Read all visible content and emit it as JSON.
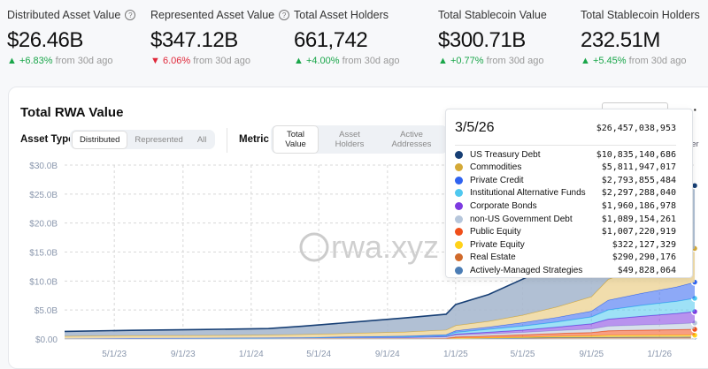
{
  "stats": [
    {
      "label": "Distributed Asset Value",
      "help": true,
      "value": "$26.46B",
      "change": "+6.83%",
      "direction": "up",
      "suffix": "from 30d ago"
    },
    {
      "label": "Represented Asset Value",
      "help": true,
      "value": "$347.12B",
      "change": "6.06%",
      "direction": "down",
      "suffix": "from 30d ago"
    },
    {
      "label": "Total Asset Holders",
      "help": false,
      "value": "661,742",
      "change": "+4.00%",
      "direction": "up",
      "suffix": "from 30d ago"
    },
    {
      "label": "Total Stablecoin Value",
      "help": false,
      "value": "$300.71B",
      "change": "+0.77%",
      "direction": "up",
      "suffix": "from 30d ago"
    },
    {
      "label": "Total Stablecoin Holders",
      "help": false,
      "value": "232.51M",
      "change": "+5.45%",
      "direction": "up",
      "suffix": "from 30d ago"
    }
  ],
  "card": {
    "title": "Total RWA Value",
    "asset_type_label": "Asset Type",
    "asset_types": [
      "Distributed",
      "Represented",
      "All"
    ],
    "asset_type_selected": "Distributed",
    "metric_label": "Metric",
    "metrics": [
      "Total Value",
      "Asset Holders",
      "Active Addresses"
    ],
    "metric_selected": "Total Value",
    "peek_text": "valer",
    "more_icon": "ellipsis-icon"
  },
  "tooltip": {
    "date": "3/5/26",
    "total": "$26,457,038,953",
    "rows": [
      {
        "name": "US Treasury Debt",
        "value": "$10,835,140,686",
        "color": "#173f75"
      },
      {
        "name": "Commodities",
        "value": "$5,811,947,017",
        "color": "#d4a937"
      },
      {
        "name": "Private Credit",
        "value": "$2,793,855,484",
        "color": "#2f63f0"
      },
      {
        "name": "Institutional Alternative Funds",
        "value": "$2,297,288,040",
        "color": "#4fc8ef"
      },
      {
        "name": "Corporate Bonds",
        "value": "$1,960,186,978",
        "color": "#7d3be0"
      },
      {
        "name": "non-US Government Debt",
        "value": "$1,089,154,261",
        "color": "#b6c6db"
      },
      {
        "name": "Public Equity",
        "value": "$1,007,220,919",
        "color": "#f04f1a"
      },
      {
        "name": "Private Equity",
        "value": "$322,127,329",
        "color": "#ffd21a"
      },
      {
        "name": "Real Estate",
        "value": "$290,290,176",
        "color": "#d06a2b"
      },
      {
        "name": "Actively-Managed Strategies",
        "value": "$49,828,064",
        "color": "#4b7db5"
      }
    ]
  },
  "watermark": "rwa.xyz",
  "chart_data": {
    "type": "area",
    "stacked": true,
    "ylim": [
      0,
      30
    ],
    "yticks": [
      "$0.00",
      "$5.0B",
      "$10.0B",
      "$15.0B",
      "$20.0B",
      "$25.0B",
      "$30.0B"
    ],
    "xticks": [
      "5/1/23",
      "9/1/23",
      "1/1/24",
      "5/1/24",
      "9/1/24",
      "1/1/25",
      "5/1/25",
      "9/1/25",
      "1/1/26"
    ],
    "grid": true,
    "x": [
      "2023-02-01",
      "2023-06-01",
      "2023-10-01",
      "2024-02-01",
      "2024-04-01",
      "2024-07-01",
      "2024-10-01",
      "2024-12-15",
      "2025-01-01",
      "2025-03-01",
      "2025-05-01",
      "2025-07-01",
      "2025-09-01",
      "2025-10-01",
      "2025-12-01",
      "2026-02-01",
      "2026-03-05"
    ],
    "series": [
      {
        "name": "Real Estate",
        "values": [
          0.03,
          0.05,
          0.05,
          0.05,
          0.05,
          0.05,
          0.05,
          0.05,
          0.08,
          0.1,
          0.15,
          0.2,
          0.22,
          0.25,
          0.27,
          0.28,
          0.29
        ]
      },
      {
        "name": "Actively-Managed Strategies",
        "values": [
          0,
          0,
          0,
          0,
          0,
          0,
          0,
          0,
          0.01,
          0.02,
          0.03,
          0.04,
          0.04,
          0.05,
          0.05,
          0.05,
          0.05
        ]
      },
      {
        "name": "Private Equity",
        "values": [
          0,
          0,
          0,
          0,
          0,
          0,
          0,
          0.02,
          0.05,
          0.1,
          0.15,
          0.2,
          0.25,
          0.3,
          0.3,
          0.32,
          0.32
        ]
      },
      {
        "name": "Public Equity",
        "values": [
          0,
          0,
          0,
          0,
          0,
          0,
          0,
          0.05,
          0.2,
          0.3,
          0.4,
          0.5,
          0.6,
          0.8,
          0.9,
          0.95,
          1.01
        ]
      },
      {
        "name": "non-US Government Debt",
        "values": [
          0.05,
          0.08,
          0.1,
          0.12,
          0.15,
          0.2,
          0.2,
          0.25,
          0.3,
          0.35,
          0.4,
          0.5,
          0.6,
          0.8,
          0.9,
          1.0,
          1.09
        ]
      },
      {
        "name": "Corporate Bonds",
        "values": [
          0,
          0,
          0,
          0,
          0,
          0,
          0.02,
          0.05,
          0.2,
          0.3,
          0.4,
          0.6,
          0.9,
          1.2,
          1.5,
          1.8,
          1.96
        ]
      },
      {
        "name": "Institutional Alternative Funds",
        "values": [
          0,
          0,
          0,
          0,
          0,
          0.05,
          0.1,
          0.15,
          0.3,
          0.5,
          0.7,
          0.9,
          1.2,
          1.6,
          1.9,
          2.1,
          2.3
        ]
      },
      {
        "name": "Private Credit",
        "values": [
          0.02,
          0.02,
          0.03,
          0.03,
          0.05,
          0.1,
          0.15,
          0.2,
          0.3,
          0.4,
          0.6,
          0.8,
          1.0,
          1.7,
          2.1,
          2.5,
          2.79
        ]
      },
      {
        "name": "Commodities",
        "values": [
          0.4,
          0.45,
          0.45,
          0.5,
          0.55,
          0.6,
          0.7,
          0.8,
          0.9,
          1.0,
          1.3,
          1.8,
          2.5,
          3.6,
          4.5,
          5.3,
          5.81
        ]
      },
      {
        "name": "US Treasury Debt",
        "values": [
          0.8,
          0.9,
          1.0,
          1.1,
          1.4,
          1.9,
          2.4,
          2.7,
          3.6,
          4.6,
          6.2,
          7.5,
          8.5,
          9.0,
          9.8,
          10.3,
          10.84
        ]
      }
    ]
  }
}
